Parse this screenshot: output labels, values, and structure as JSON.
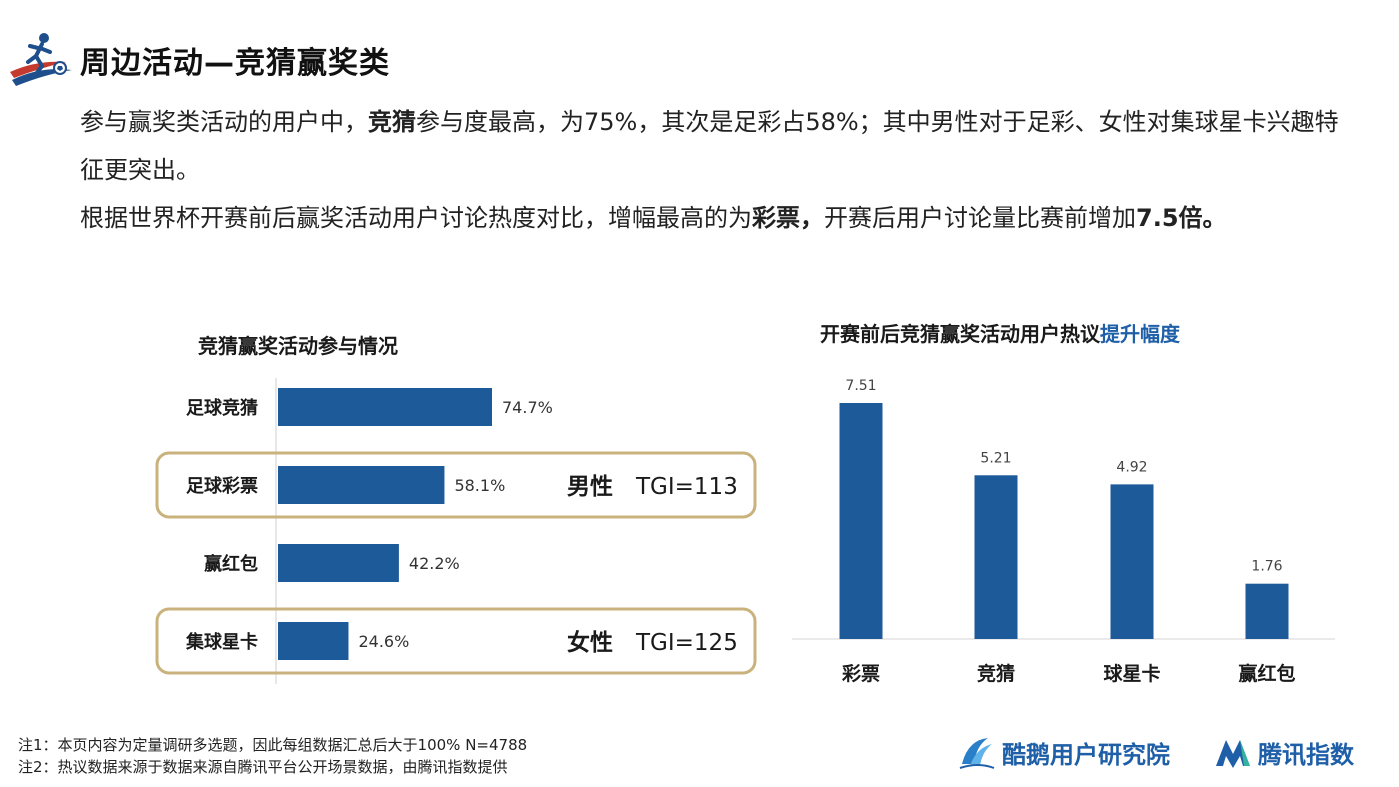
{
  "page": {
    "title": "周边活动—竞猜赢奖类",
    "para1": [
      {
        "text": "参与赢奖类活动的用户中，",
        "bold": false
      },
      {
        "text": "竞猜",
        "bold": true
      },
      {
        "text": "参与度最高，为75%，其次是足彩占58%；其中男性对于足彩、女性对集球星卡兴趣特征更突出。",
        "bold": false
      }
    ],
    "para2": [
      {
        "text": "根据世界杯开赛前后赢奖活动用户讨论热度对比，增幅最高的为",
        "bold": false
      },
      {
        "text": "彩票，",
        "bold": true
      },
      {
        "text": "开赛后用户讨论量比赛前增加",
        "bold": false
      },
      {
        "text": "7.5倍。",
        "bold": true
      }
    ]
  },
  "chart_data": [
    {
      "type": "bar",
      "orientation": "horizontal",
      "title": "竞猜赢奖活动参与情况",
      "categories": [
        "足球竞猜",
        "足球彩票",
        "赢红包",
        "集球星卡"
      ],
      "values": [
        74.7,
        58.1,
        42.2,
        24.6
      ],
      "value_labels": [
        "74.7%",
        "58.1%",
        "42.2%",
        "24.6%"
      ],
      "unit": "%",
      "color": "#1d5a99",
      "annotations": [
        {
          "category": "足球彩票",
          "group": "男性",
          "tgi": "TGI=113"
        },
        {
          "category": "集球星卡",
          "group": "女性",
          "tgi": "TGI=125"
        }
      ]
    },
    {
      "type": "bar",
      "orientation": "vertical",
      "title_prefix": "开赛前后竞猜赢奖活动用户热议",
      "title_highlight": "提升幅度",
      "categories": [
        "彩票",
        "竞猜",
        "球星卡",
        "赢红包"
      ],
      "values": [
        7.51,
        5.21,
        4.92,
        1.76
      ],
      "value_labels": [
        "7.51",
        "5.21",
        "4.92",
        "1.76"
      ],
      "color": "#1d5a99",
      "highlight_color": "#1e5fa8"
    }
  ],
  "notes": [
    "注1：本页内容为定量调研多选题，因此每组数据汇总后大于100%   N=4788",
    "注2：热议数据来源于数据来源自腾讯平台公开场景数据，由腾讯指数提供"
  ],
  "brands": [
    {
      "name": "酷鹅用户研究院",
      "icon": "penguin-wave-icon"
    },
    {
      "name": "腾讯指数",
      "icon": "tencent-index-icon"
    }
  ],
  "watermark": "腾讯指数  酷鹅用户研究院",
  "colors": {
    "bar": "#1d5a99",
    "frame": "#c9b27c",
    "accent": "#1e5fa8"
  }
}
